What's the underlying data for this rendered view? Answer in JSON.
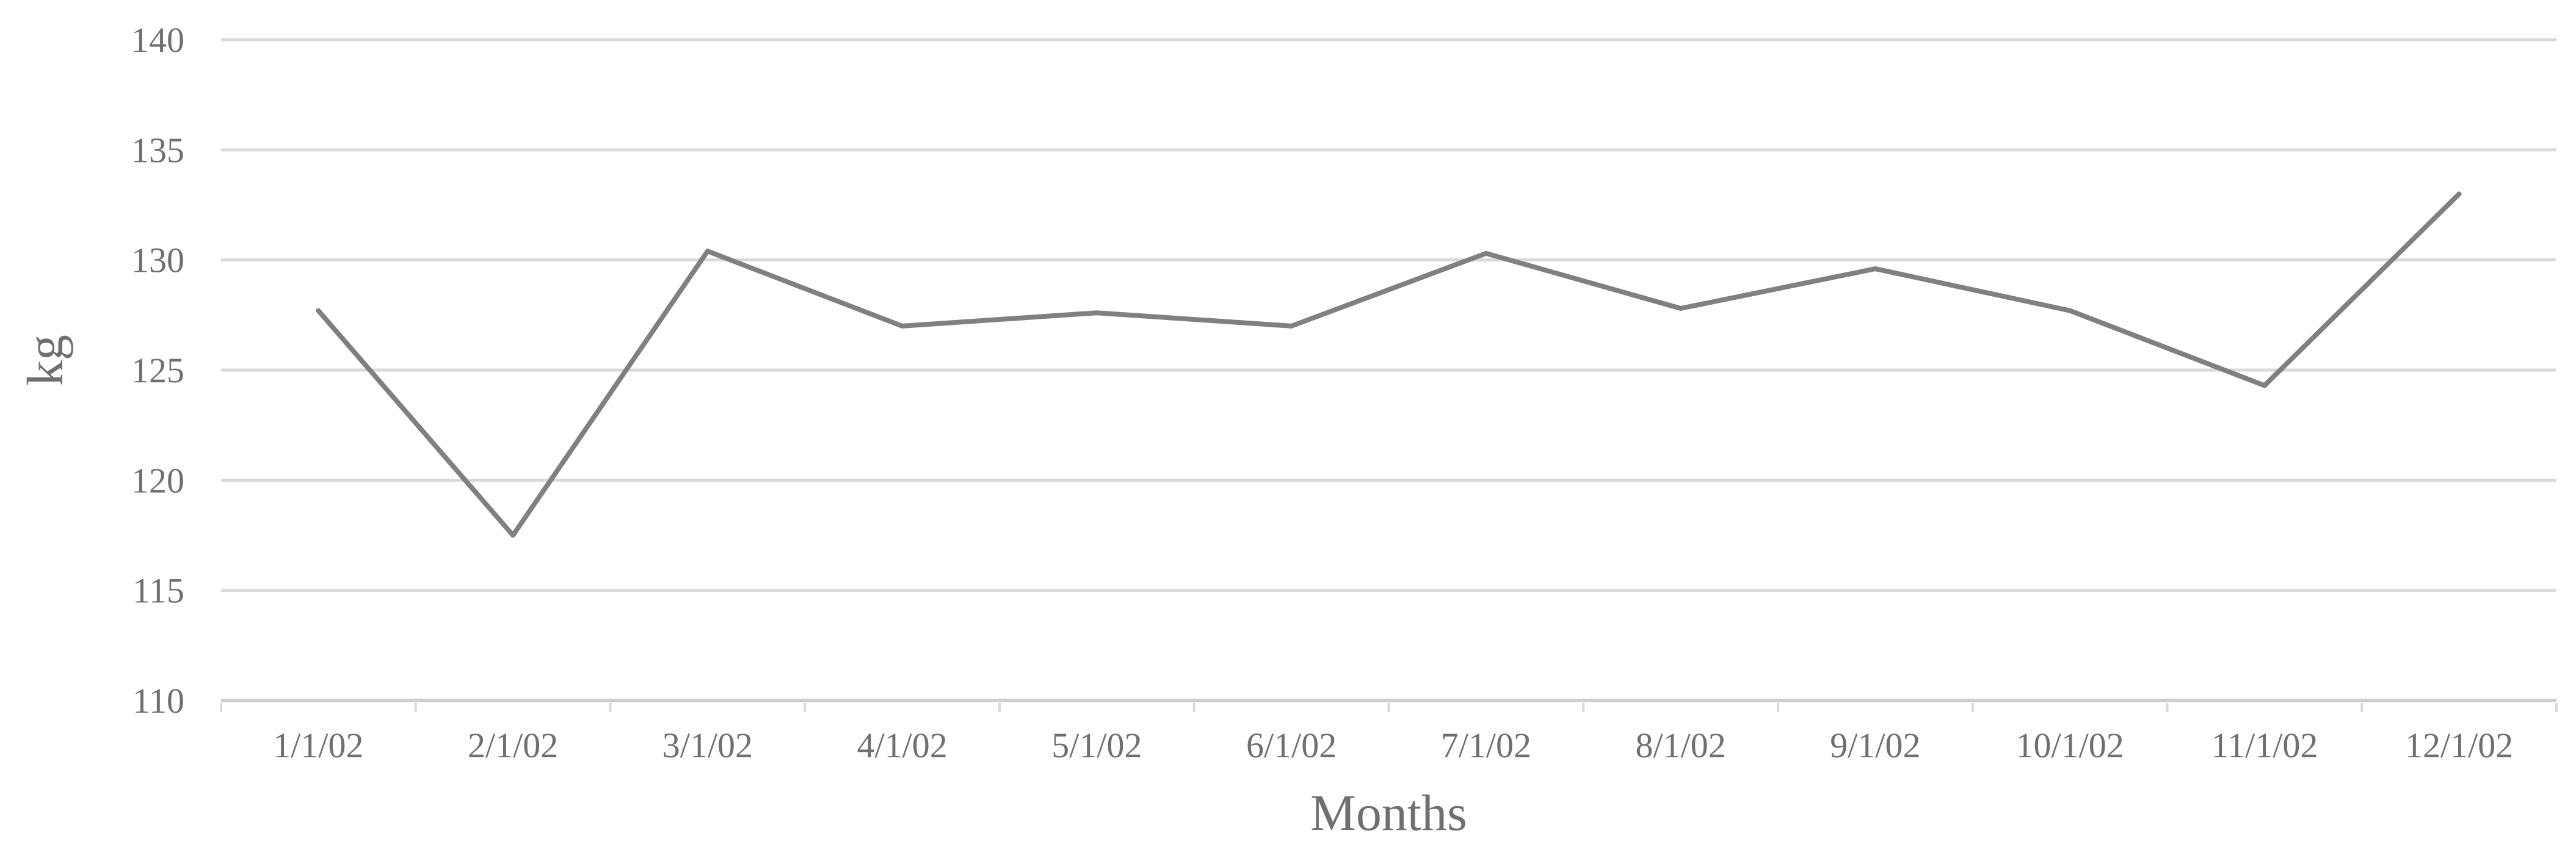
{
  "chart_data": {
    "type": "line",
    "title": "",
    "xlabel": "Months",
    "ylabel": "kg",
    "categories": [
      "1/1/02",
      "2/1/02",
      "3/1/02",
      "4/1/02",
      "5/1/02",
      "6/1/02",
      "7/1/02",
      "8/1/02",
      "9/1/02",
      "10/1/02",
      "11/1/02",
      "12/1/02"
    ],
    "values": [
      127.7,
      117.5,
      130.4,
      127.0,
      127.6,
      127.0,
      130.3,
      127.8,
      129.6,
      127.7,
      124.3,
      133.0
    ],
    "ylim": [
      110,
      140
    ],
    "ytick_step": 5,
    "ytick_labels": [
      "110",
      "115",
      "120",
      "125",
      "130",
      "135",
      "140"
    ],
    "grid": "horizontal-only",
    "legend": "none",
    "series_name": "kg",
    "series_color": "#808080",
    "gridline_color": "#d9d9d9",
    "axis_line_color": "#cfcfcf",
    "label_color": "#6f6f6f"
  }
}
